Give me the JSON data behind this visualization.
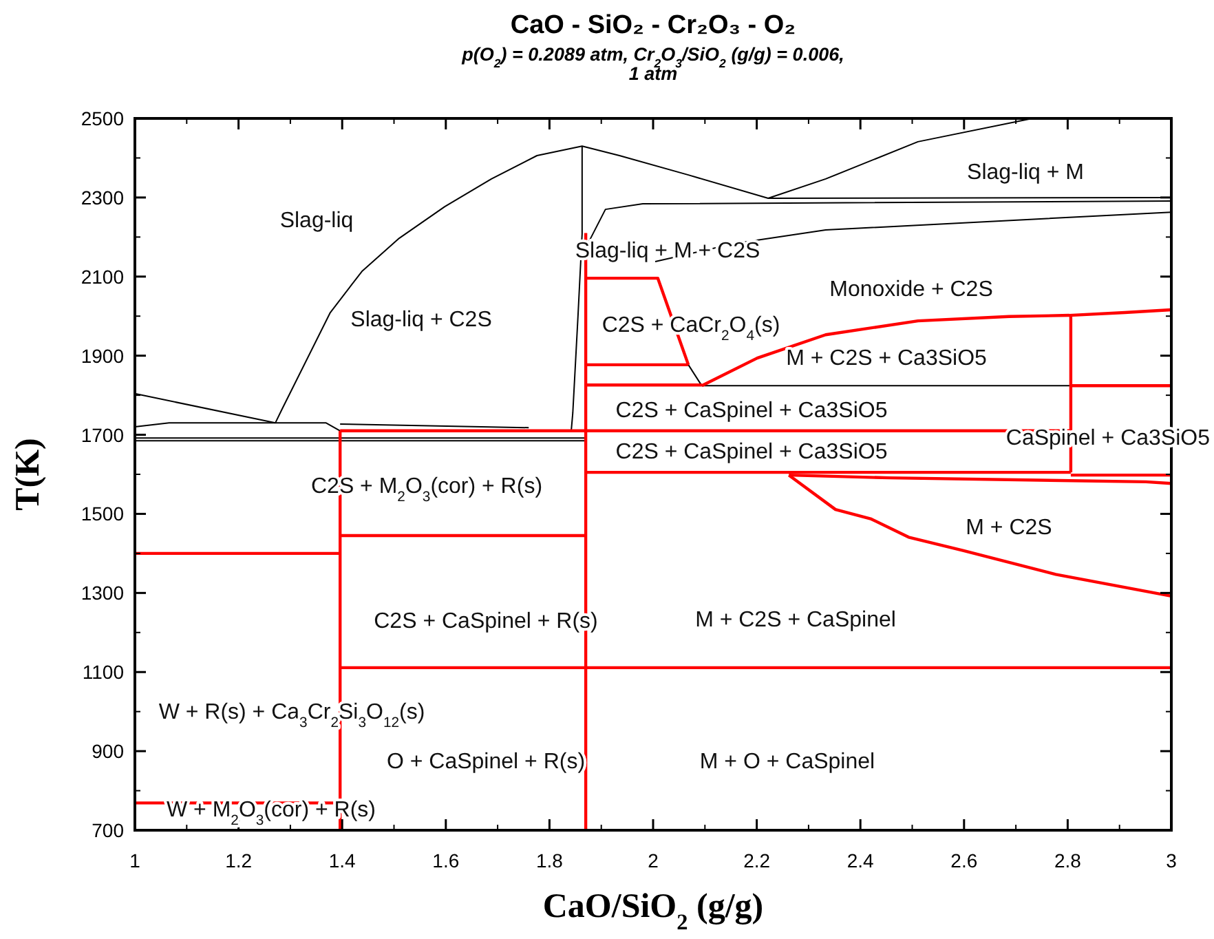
{
  "chart_data": {
    "type": "line",
    "title": "CaO - SiO₂ - Cr₂O₃ - O₂",
    "subtitle": "p(O$_{2}$) = 0.2089 atm,  Cr$_{2}$O$_{3}$/SiO$_{2}$ (g/g)  = 0.006,\n1 atm",
    "xlabel": "CaO/SiO$_{2}$ (g/g)",
    "ylabel": "T(K)",
    "xlim": [
      1,
      3
    ],
    "ylim": [
      700,
      2500
    ],
    "xticks": [
      1,
      1.2,
      1.4,
      1.6,
      1.8,
      2,
      2.2,
      2.4,
      2.6,
      2.8,
      3
    ],
    "yticks": [
      700,
      900,
      1100,
      1300,
      1500,
      1700,
      1900,
      2100,
      2300,
      2500
    ],
    "grid": false,
    "line_style": "solid",
    "series": [
      {
        "color": "#000000",
        "x": [
          1,
          1.271
        ],
        "values": [
          1804,
          1730
        ]
      },
      {
        "color": "#000000",
        "x": [
          1.271,
          1.284,
          1.377,
          1.438,
          1.51,
          1.598,
          1.688,
          1.776,
          1.863,
          1.935,
          2.068,
          2.222,
          2.333,
          2.511,
          2.732
        ],
        "values": [
          1730,
          1765,
          2009,
          2113,
          2197,
          2277,
          2347,
          2406,
          2430,
          2406,
          2357,
          2298,
          2347,
          2441,
          2500
        ]
      },
      {
        "color": "#000000",
        "x": [
          1.863,
          1.863,
          1.855,
          1.845,
          1.842
        ],
        "values": [
          2430,
          2208,
          1999,
          1755,
          1710
        ]
      },
      {
        "color": "#000000",
        "x": [
          1,
          1.066,
          1.369,
          1.396
        ],
        "values": [
          1720,
          1730,
          1730,
          1710
        ]
      },
      {
        "color": "#000000",
        "x": [
          1.396,
          1.76
        ],
        "values": [
          1727,
          1718
        ]
      },
      {
        "color": "#000000",
        "x": [
          1,
          1.87
        ],
        "values": [
          1692,
          1692
        ]
      },
      {
        "color": "#000000",
        "x": [
          1,
          1.87
        ],
        "values": [
          1685,
          1685
        ]
      },
      {
        "color": "#000000",
        "x": [
          2.222,
          3
        ],
        "values": [
          2298,
          2300
        ]
      },
      {
        "color": "#000000",
        "x": [
          1.874,
          1.908,
          1.98,
          3
        ],
        "values": [
          2183,
          2270,
          2284,
          2291
        ]
      },
      {
        "color": "#000000",
        "x": [
          2.004,
          2.155,
          2.333,
          3
        ],
        "values": [
          2138,
          2183,
          2218,
          2263
        ]
      },
      {
        "color": "#000000",
        "x": [
          2.068,
          2.094
        ],
        "values": [
          1877,
          1824
        ]
      },
      {
        "color": "#000000",
        "x": [
          2.094,
          3
        ],
        "values": [
          1824,
          1824
        ]
      },
      {
        "color": "#ff0000",
        "x": [
          1.87,
          1.87
        ],
        "values": [
          2210,
          700
        ]
      },
      {
        "color": "#ff0000",
        "x": [
          1.87,
          2.009,
          2.068
        ],
        "values": [
          2096,
          2096,
          1877
        ]
      },
      {
        "color": "#ff0000",
        "x": [
          1.87,
          2.068
        ],
        "values": [
          1877,
          1877
        ]
      },
      {
        "color": "#ff0000",
        "x": [
          1.87,
          2.094
        ],
        "values": [
          1826,
          1826
        ]
      },
      {
        "color": "#ff0000",
        "x": [
          2.094,
          2.201,
          2.333,
          2.511,
          2.687,
          2.803,
          2.91,
          3
        ],
        "values": [
          1824,
          1894,
          1953,
          1988,
          1999,
          2002,
          2009,
          2016
        ]
      },
      {
        "color": "#ff0000",
        "x": [
          2.806,
          2.806
        ],
        "values": [
          2002,
          1605
        ]
      },
      {
        "color": "#ff0000",
        "x": [
          2.806,
          3
        ],
        "values": [
          1824,
          1824
        ]
      },
      {
        "color": "#ff0000",
        "x": [
          1.396,
          2.806
        ],
        "values": [
          1710,
          1710
        ]
      },
      {
        "color": "#ff0000",
        "x": [
          1.87,
          2.806
        ],
        "values": [
          1605,
          1605
        ]
      },
      {
        "color": "#ff0000",
        "x": [
          2.806,
          3
        ],
        "values": [
          1598,
          1598
        ]
      },
      {
        "color": "#ff0000",
        "x": [
          2.262,
          2.352,
          2.421,
          2.493,
          2.599,
          2.777,
          3
        ],
        "values": [
          1598,
          1511,
          1487,
          1441,
          1407,
          1347,
          1292
        ]
      },
      {
        "color": "#ff0000",
        "x": [
          2.262,
          2.457,
          2.951,
          3
        ],
        "values": [
          1598,
          1591,
          1581,
          1577
        ]
      },
      {
        "color": "#ff0000",
        "x": [
          1.396,
          1.396
        ],
        "values": [
          1710,
          700
        ]
      },
      {
        "color": "#ff0000",
        "x": [
          1.396,
          1.87
        ],
        "values": [
          1445,
          1445
        ]
      },
      {
        "color": "#ff0000",
        "x": [
          1.396,
          3
        ],
        "values": [
          1111,
          1111
        ]
      },
      {
        "color": "#ff0000",
        "x": [
          1,
          1.396
        ],
        "values": [
          1400,
          1400
        ]
      },
      {
        "color": "#ff0000",
        "x": [
          1,
          1.396
        ],
        "values": [
          769,
          769
        ]
      }
    ],
    "annotations": [
      "Slag-liq",
      "Slag-liq + C2S",
      "Slag-liq + M + C2S",
      "Slag-liq + M",
      "Monoxide + C2S",
      "C2S + CaCr$_{2}$O$_{4}$(s)",
      "M + C2S + Ca3SiO5",
      "C2S + CaSpinel + Ca3SiO5",
      "C2S + CaSpinel + Ca3SiO5",
      "CaSpinel + Ca3SiO5",
      "C2S + M$_{2}$O$_{3}$(cor) + R(s)",
      "M + C2S",
      "C2S + CaSpinel + R(s)",
      "M + C2S + CaSpinel",
      "W + R(s) + Ca$_{3}$Cr$_{2}$Si$_{3}$O$_{12}$(s)",
      "O + CaSpinel + R(s)",
      "M + O + CaSpinel",
      "W + M$_{2}$O$_{3}$(cor) + R(s)"
    ]
  }
}
